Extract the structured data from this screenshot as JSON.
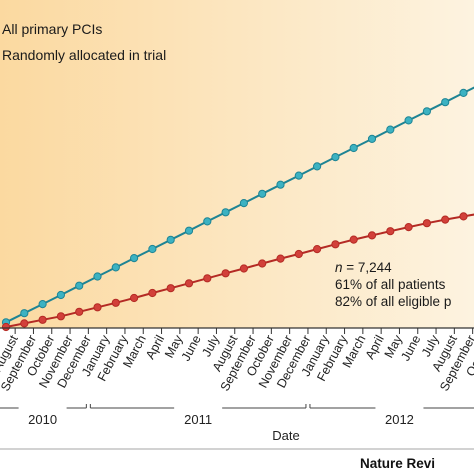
{
  "chart_data": {
    "type": "line",
    "xlabel": "Date",
    "ylabel": "",
    "title": "",
    "months": [
      "August",
      "September",
      "October",
      "November",
      "December",
      "January",
      "February",
      "March",
      "April",
      "May",
      "June",
      "July",
      "August",
      "September",
      "October",
      "November",
      "December",
      "January",
      "February",
      "March",
      "April",
      "May",
      "June",
      "July",
      "August",
      "September",
      "October"
    ],
    "years": [
      {
        "label": "2010",
        "start": 0,
        "end": 4
      },
      {
        "label": "2011",
        "start": 5,
        "end": 16
      },
      {
        "label": "2012",
        "start": 17,
        "end": 26
      }
    ],
    "legend": [
      "All primary PCIs",
      "Randomly allocated in trial"
    ],
    "series": [
      {
        "name": "All primary PCIs",
        "color": "#1e8494",
        "marker": "#3cb2c2",
        "x": [
          0,
          1,
          2,
          3,
          4,
          5,
          6,
          7,
          8,
          9,
          10,
          11,
          12,
          13,
          14,
          15,
          16,
          17,
          18,
          19,
          20,
          21,
          22,
          23,
          24,
          25,
          26,
          27
        ],
        "values": [
          0.26,
          0.77,
          1.28,
          1.79,
          2.31,
          2.82,
          3.33,
          3.85,
          4.36,
          4.87,
          5.38,
          5.9,
          6.41,
          6.92,
          7.44,
          7.95,
          8.46,
          8.97,
          9.49,
          10,
          10.51,
          11.03,
          11.54,
          12.05,
          12.56,
          13.08,
          13.59,
          14.1
        ]
      },
      {
        "name": "Randomly allocated in trial",
        "color": "#b42a24",
        "marker": "#d2403a",
        "x": [
          0,
          1,
          2,
          3,
          4,
          5,
          6,
          7,
          8,
          9,
          10,
          11,
          12,
          13,
          14,
          15,
          16,
          17,
          18,
          19,
          20,
          21,
          22,
          23,
          24,
          25,
          26,
          27
        ],
        "values": [
          0,
          0.2,
          0.4,
          0.6,
          0.85,
          1.1,
          1.35,
          1.62,
          1.9,
          2.17,
          2.44,
          2.72,
          3,
          3.27,
          3.55,
          3.82,
          4.08,
          4.35,
          4.62,
          4.88,
          5.12,
          5.35,
          5.58,
          5.8,
          6,
          6.18,
          6.36,
          6.55
        ]
      }
    ],
    "annotation": {
      "n_prefix": "n",
      "n_suffix": " = 7,244",
      "line1": "61% of all patients",
      "line2": "82% of all eligible p"
    },
    "credit": "Nature Revi",
    "gradient_colors": [
      "#fbd9a0",
      "#fdf3e0"
    ]
  }
}
